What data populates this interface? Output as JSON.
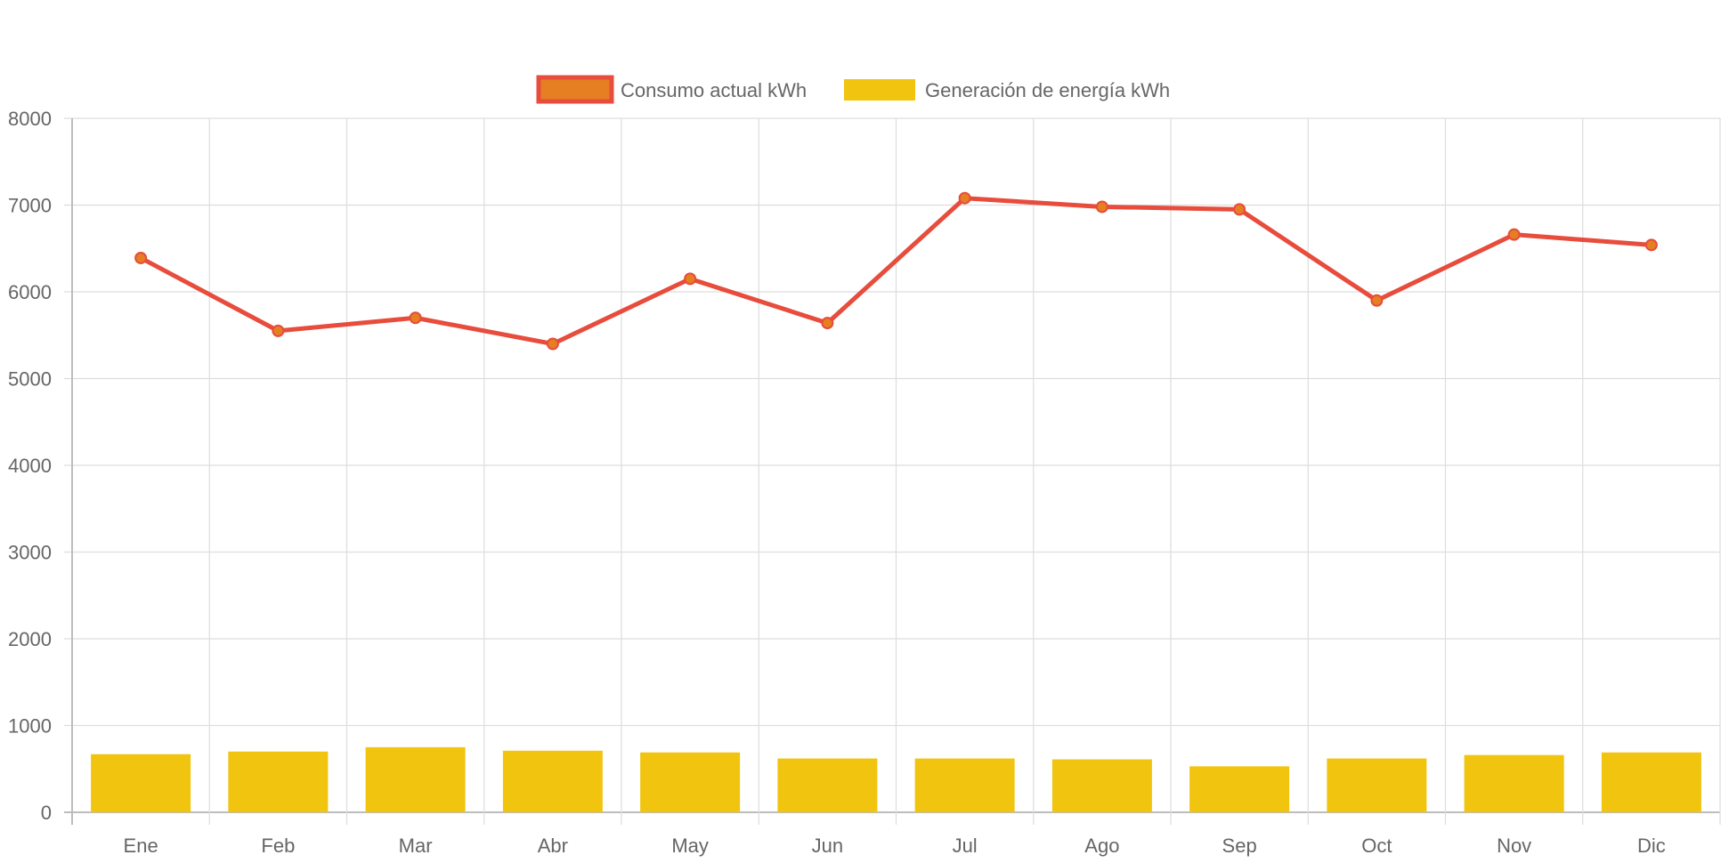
{
  "chart_data": {
    "type": "bar",
    "categories": [
      "Ene",
      "Feb",
      "Mar",
      "Abr",
      "May",
      "Jun",
      "Jul",
      "Ago",
      "Sep",
      "Oct",
      "Nov",
      "Dic"
    ],
    "series": [
      {
        "name": "Consumo actual kWh",
        "type": "line",
        "values": [
          6390,
          5550,
          5700,
          5400,
          6150,
          5640,
          7080,
          6980,
          6950,
          5900,
          6660,
          6540
        ],
        "line_color": "#e74c3c",
        "point_color": "#e67e22"
      },
      {
        "name": "Generación de energía kWh",
        "type": "bar",
        "values": [
          670,
          700,
          750,
          710,
          690,
          620,
          620,
          610,
          530,
          620,
          660,
          690
        ],
        "color": "#f1c40f"
      }
    ],
    "ylim": [
      0,
      8000
    ],
    "yticks": [
      0,
      1000,
      2000,
      3000,
      4000,
      5000,
      6000,
      7000,
      8000
    ],
    "grid": true,
    "legend": "top-center"
  }
}
